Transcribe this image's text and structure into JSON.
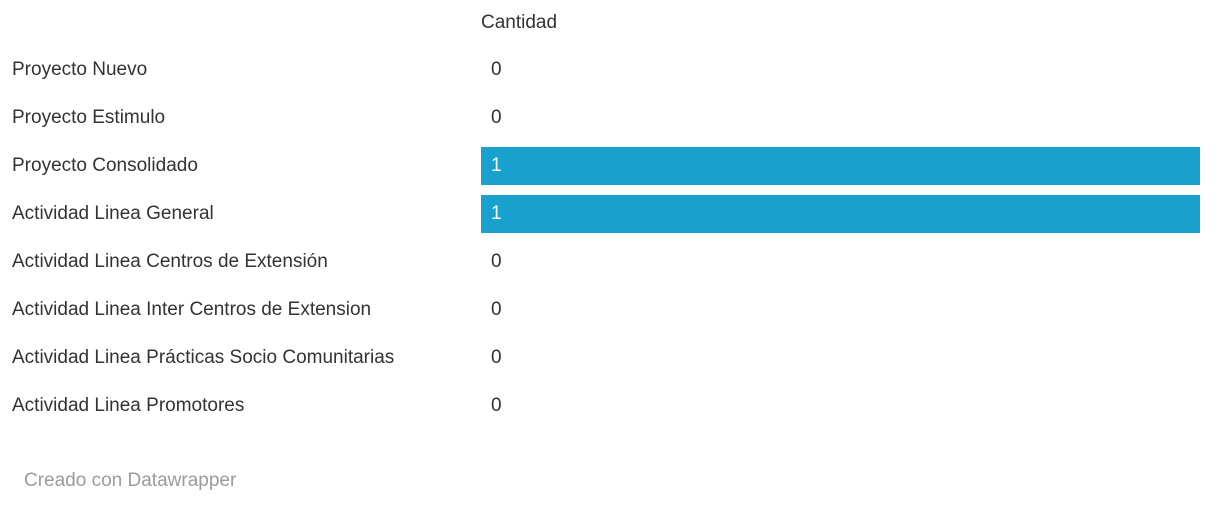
{
  "chart_data": {
    "type": "bar",
    "orientation": "horizontal",
    "value_column_header": "Cantidad",
    "categories": [
      "Proyecto Nuevo",
      "Proyecto Estimulo",
      "Proyecto Consolidado",
      "Actividad Linea General",
      "Actividad Linea Centros de Extensión",
      "Actividad Linea Inter Centros de Extension",
      "Actividad Linea Prácticas Socio Comunitarias",
      "Actividad Linea Promotores"
    ],
    "values": [
      0,
      0,
      1,
      1,
      0,
      0,
      0,
      0
    ],
    "xlim": [
      0,
      1
    ],
    "grid": false,
    "legend": "none",
    "bar_color": "#18a1cd",
    "value_label_color_inside_bar": "#ffffff",
    "value_label_color_default": "#333333"
  },
  "footer": {
    "text": "Creado con Datawrapper"
  }
}
